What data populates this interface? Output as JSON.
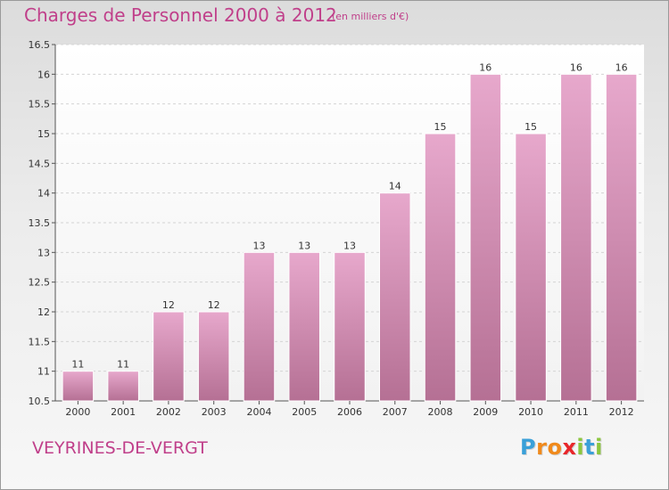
{
  "header": {
    "title": "Charges de Personnel 2000 à 2012",
    "subtitle": "(en milliers d'€)"
  },
  "footer": {
    "commune": "VEYRINES-DE-VERGT",
    "logo": {
      "letters": [
        "P",
        "r",
        "o",
        "x",
        "i",
        "t",
        "i"
      ],
      "colors": [
        "#3aa0d8",
        "#f08a1c",
        "#f08a1c",
        "#e8262a",
        "#8cc63f",
        "#3aa0d8",
        "#8cc63f"
      ]
    }
  },
  "chart_data": {
    "type": "bar",
    "title": "Charges de Personnel 2000 à 2012",
    "subtitle": "(en milliers d'€)",
    "categories": [
      "2000",
      "2001",
      "2002",
      "2003",
      "2004",
      "2005",
      "2006",
      "2007",
      "2008",
      "2009",
      "2010",
      "2011",
      "2012"
    ],
    "values": [
      11,
      11,
      12,
      12,
      13,
      13,
      13,
      14,
      15,
      16,
      15,
      16,
      16
    ],
    "data_labels": [
      "11",
      "11",
      "12",
      "12",
      "13",
      "13",
      "13",
      "14",
      "15",
      "16",
      "15",
      "16",
      "16"
    ],
    "ylim": [
      10.5,
      16.5
    ],
    "yticks": [
      10.5,
      11,
      11.5,
      12,
      12.5,
      13,
      13.5,
      14,
      14.5,
      15,
      15.5,
      16,
      16.5
    ],
    "ytick_labels": [
      "10.5",
      "11",
      "11.5",
      "12",
      "12.5",
      "13",
      "13.5",
      "14",
      "14.5",
      "15",
      "15.5",
      "16",
      "16.5"
    ],
    "grid": true,
    "colors": {
      "bar_top": "#e7a8cc",
      "bar_bottom": "#b57094",
      "text": "#c03f8a"
    }
  }
}
